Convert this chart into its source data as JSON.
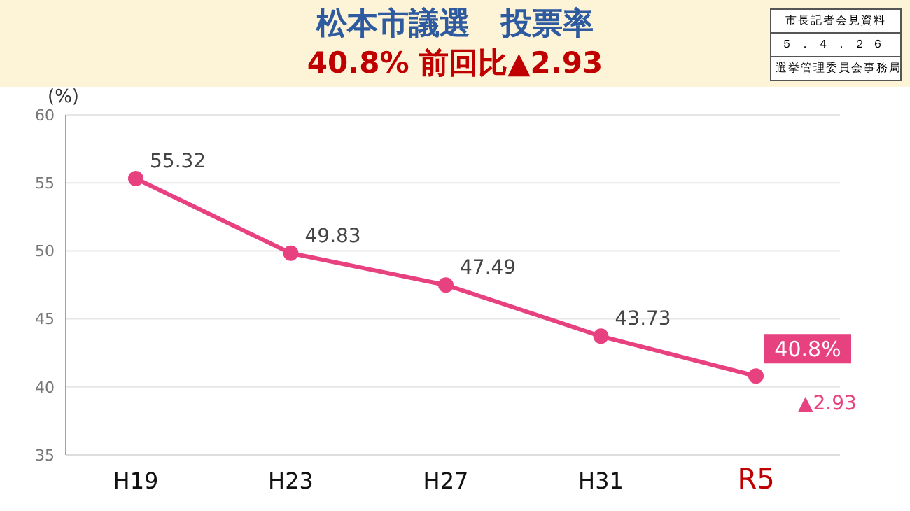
{
  "chart_data": {
    "type": "line",
    "title": "松本市議選　投票率",
    "subtitle": "40.8% 前回比▲2.93",
    "ylabel": "(%)",
    "categories": [
      "H19",
      "H23",
      "H27",
      "H31",
      "R5"
    ],
    "series": [
      {
        "color": "#e8417f",
        "values": [
          55.32,
          49.83,
          47.49,
          43.73,
          40.8
        ],
        "value_labels": [
          "55.32",
          "49.83",
          "47.49",
          "43.73",
          "40.8%"
        ]
      }
    ],
    "ylim": [
      35,
      60
    ],
    "yticks": [
      35,
      40,
      45,
      50,
      55,
      60
    ],
    "grid": "y",
    "marker": "circle",
    "legend": false,
    "annotations": [
      {
        "text": "▲2.93",
        "x": "R5",
        "y": 40.8
      },
      "市長記者会見資料",
      "５．４．２６",
      "選挙管理委員会事務局"
    ]
  }
}
